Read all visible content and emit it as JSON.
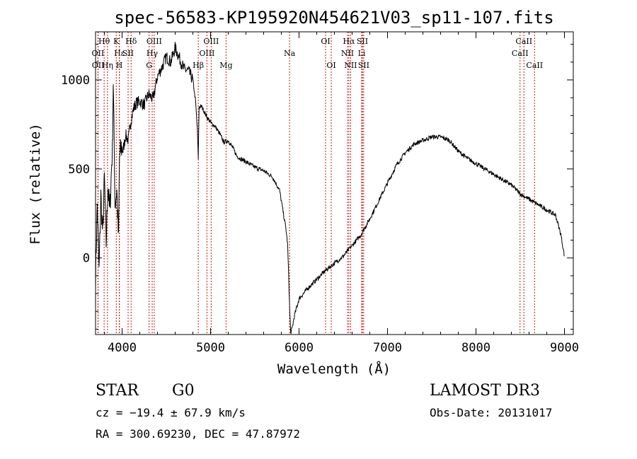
{
  "chart_data": {
    "type": "line",
    "title": "spec-56583-KP195920N454621V03_sp11-107.fits",
    "xlabel": "Wavelength (Å)",
    "ylabel": "Flux (relative)",
    "xlim": [
      3700,
      9100
    ],
    "ylim": [
      -430,
      1270
    ],
    "xticks": [
      4000,
      5000,
      6000,
      7000,
      8000,
      9000
    ],
    "yticks": [
      0,
      500,
      1000
    ],
    "xtick_labels": [
      "4000",
      "5000",
      "6000",
      "7000",
      "8000",
      "9000"
    ],
    "ytick_labels": [
      "0",
      "500",
      "1000"
    ],
    "series": [
      {
        "name": "spectrum",
        "x": [
          3700,
          3720,
          3740,
          3760,
          3780,
          3800,
          3820,
          3840,
          3860,
          3880,
          3890,
          3900,
          3920,
          3940,
          3960,
          3970,
          3990,
          4010,
          4040,
          4070,
          4100,
          4130,
          4160,
          4200,
          4250,
          4300,
          4350,
          4400,
          4450,
          4500,
          4550,
          4600,
          4650,
          4700,
          4750,
          4800,
          4830,
          4850,
          4861,
          4870,
          4900,
          4950,
          5000,
          5050,
          5100,
          5150,
          5200,
          5250,
          5300,
          5400,
          5500,
          5600,
          5700,
          5780,
          5820,
          5850,
          5870,
          5880,
          5895,
          5905,
          5920,
          5950,
          6000,
          6100,
          6200,
          6300,
          6400,
          6500,
          6600,
          6700,
          6800,
          6900,
          7000,
          7100,
          7200,
          7300,
          7400,
          7500,
          7600,
          7700,
          7800,
          7900,
          8000,
          8100,
          8200,
          8300,
          8400,
          8500,
          8600,
          8700,
          8800,
          8900,
          8960,
          9000
        ],
        "y": [
          -100,
          300,
          -80,
          350,
          120,
          450,
          80,
          420,
          250,
          500,
          600,
          1000,
          300,
          380,
          90,
          560,
          620,
          600,
          690,
          660,
          770,
          840,
          870,
          880,
          860,
          920,
          890,
          1020,
          1070,
          1130,
          1100,
          1180,
          1120,
          1060,
          1050,
          1000,
          880,
          720,
          560,
          850,
          850,
          800,
          760,
          740,
          700,
          650,
          660,
          620,
          570,
          540,
          510,
          490,
          455,
          380,
          260,
          170,
          80,
          -60,
          -300,
          -420,
          -400,
          -320,
          -230,
          -170,
          -120,
          -70,
          -30,
          10,
          70,
          130,
          220,
          320,
          420,
          520,
          590,
          640,
          660,
          680,
          680,
          660,
          600,
          560,
          530,
          500,
          470,
          440,
          410,
          360,
          330,
          300,
          270,
          240,
          130,
          10
        ]
      }
    ],
    "line_markers": [
      {
        "label": "Hθ",
        "wavelength": 3797,
        "row": 1
      },
      {
        "label": "OII",
        "wavelength": 3727,
        "row": 2
      },
      {
        "label": "OII",
        "wavelength": 3729,
        "row": 3
      },
      {
        "label": "Hε",
        "wavelength": 3970,
        "row": 2
      },
      {
        "label": "Hη",
        "wavelength": 3835,
        "row": 3
      },
      {
        "label": "K",
        "wavelength": 3934,
        "row": 1
      },
      {
        "label": "H",
        "wavelength": 3968,
        "row": 3
      },
      {
        "label": "SII",
        "wavelength": 4068,
        "row": 2
      },
      {
        "label": "Hδ",
        "wavelength": 4102,
        "row": 1
      },
      {
        "label": "OIII",
        "wavelength": 4363,
        "row": 1
      },
      {
        "label": "Hγ",
        "wavelength": 4340,
        "row": 2
      },
      {
        "label": "G",
        "wavelength": 4305,
        "row": 3
      },
      {
        "label": "Hβ",
        "wavelength": 4861,
        "row": 3
      },
      {
        "label": "OIII",
        "wavelength": 5007,
        "row": 1
      },
      {
        "label": "OIII",
        "wavelength": 4959,
        "row": 2
      },
      {
        "label": "Mg",
        "wavelength": 5175,
        "row": 3
      },
      {
        "label": "Na",
        "wavelength": 5893,
        "row": 2
      },
      {
        "label": "OI",
        "wavelength": 6300,
        "row": 1
      },
      {
        "label": "OI",
        "wavelength": 6364,
        "row": 3
      },
      {
        "label": "Hα",
        "wavelength": 6563,
        "row": 1
      },
      {
        "label": "NII",
        "wavelength": 6548,
        "row": 2
      },
      {
        "label": "NII",
        "wavelength": 6583,
        "row": 3
      },
      {
        "label": "SII",
        "wavelength": 6716,
        "row": 1
      },
      {
        "label": "Li",
        "wavelength": 6708,
        "row": 2
      },
      {
        "label": "SII",
        "wavelength": 6731,
        "row": 3
      },
      {
        "label": "CaII",
        "wavelength": 8542,
        "row": 1
      },
      {
        "label": "CaII",
        "wavelength": 8498,
        "row": 2
      },
      {
        "label": "CaII",
        "wavelength": 8662,
        "row": 3
      }
    ],
    "colors": {
      "spectrum": "#000000",
      "markers": "#c81414",
      "axes": "#000000"
    }
  },
  "footer": {
    "object_class": "STAR",
    "subclass": "G0",
    "survey": "LAMOST DR3",
    "cz": "cz = −19.4 ± 67.9 km/s",
    "obs_date": "Obs-Date: 20131017",
    "coords": "RA = 300.69230, DEC =  47.87972"
  }
}
